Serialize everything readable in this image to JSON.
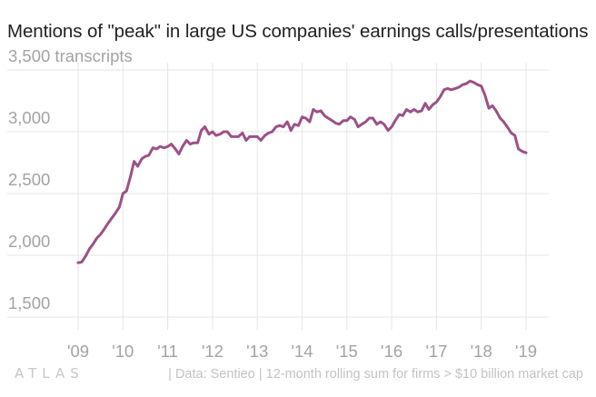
{
  "title": "Mentions of \"peak\" in large US companies' earnings calls/presentations",
  "footer": {
    "logo_text": "ATLAS",
    "source_text": "| Data: Sentieo | 12-month rolling sum for firms > $10 billion market cap"
  },
  "colors": {
    "line": "#9c5187",
    "grid": "#e6e6e6",
    "tick_label": "#a3a3a3",
    "title": "#222222"
  },
  "chart_data": {
    "type": "line",
    "title": "Mentions of \"peak\" in large US companies' earnings calls/presentations",
    "xlabel": "",
    "ylabel": "",
    "y_unit_label": "transcripts",
    "xlim": [
      2008.8,
      2019.5
    ],
    "ylim": [
      1300,
      3600
    ],
    "y_ticks": [
      1500,
      2000,
      2500,
      3000,
      3500
    ],
    "y_tick_labels": [
      "1,500",
      "2,000",
      "2,500",
      "3,000",
      "3,500 transcripts"
    ],
    "x_ticks": [
      2009,
      2010,
      2011,
      2012,
      2013,
      2014,
      2015,
      2016,
      2017,
      2018,
      2019
    ],
    "x_tick_labels": [
      "'09",
      "'10",
      "'11",
      "'12",
      "'13",
      "'14",
      "'15",
      "'16",
      "'17",
      "'18",
      "'19"
    ],
    "grid": true,
    "series": [
      {
        "name": "",
        "x": [
          2009.0,
          2009.08,
          2009.17,
          2009.25,
          2009.33,
          2009.42,
          2009.5,
          2009.58,
          2009.67,
          2009.75,
          2009.83,
          2009.92,
          2010.0,
          2010.08,
          2010.17,
          2010.25,
          2010.33,
          2010.42,
          2010.5,
          2010.58,
          2010.67,
          2010.75,
          2010.83,
          2010.92,
          2011.0,
          2011.08,
          2011.17,
          2011.25,
          2011.33,
          2011.42,
          2011.5,
          2011.58,
          2011.67,
          2011.75,
          2011.83,
          2011.92,
          2012.0,
          2012.08,
          2012.17,
          2012.25,
          2012.33,
          2012.42,
          2012.5,
          2012.58,
          2012.67,
          2012.75,
          2012.83,
          2012.92,
          2013.0,
          2013.08,
          2013.17,
          2013.25,
          2013.33,
          2013.42,
          2013.5,
          2013.58,
          2013.67,
          2013.75,
          2013.83,
          2013.92,
          2014.0,
          2014.08,
          2014.17,
          2014.25,
          2014.33,
          2014.42,
          2014.5,
          2014.58,
          2014.67,
          2014.75,
          2014.83,
          2014.92,
          2015.0,
          2015.08,
          2015.17,
          2015.25,
          2015.33,
          2015.42,
          2015.5,
          2015.58,
          2015.67,
          2015.75,
          2015.83,
          2015.92,
          2016.0,
          2016.08,
          2016.17,
          2016.25,
          2016.33,
          2016.42,
          2016.5,
          2016.58,
          2016.67,
          2016.75,
          2016.83,
          2016.92,
          2017.0,
          2017.08,
          2017.17,
          2017.25,
          2017.33,
          2017.42,
          2017.5,
          2017.58,
          2017.67,
          2017.75,
          2017.83,
          2017.92,
          2018.0,
          2018.08,
          2018.17,
          2018.25,
          2018.33,
          2018.42,
          2018.5,
          2018.58,
          2018.67,
          2018.75,
          2018.83,
          2018.92,
          2019.0
        ],
        "values": [
          1940,
          1945,
          1995,
          2050,
          2090,
          2140,
          2170,
          2210,
          2260,
          2300,
          2340,
          2390,
          2500,
          2520,
          2640,
          2760,
          2720,
          2780,
          2800,
          2810,
          2870,
          2860,
          2880,
          2870,
          2880,
          2900,
          2860,
          2820,
          2880,
          2930,
          2900,
          2910,
          2910,
          3010,
          3040,
          2980,
          3000,
          2970,
          2980,
          3000,
          3000,
          2960,
          2960,
          2960,
          2990,
          2930,
          2960,
          2960,
          2960,
          2930,
          2970,
          2990,
          3000,
          3040,
          3050,
          3040,
          3080,
          3010,
          3060,
          3050,
          3120,
          3110,
          3080,
          3180,
          3160,
          3170,
          3130,
          3110,
          3090,
          3070,
          3060,
          3090,
          3090,
          3120,
          3100,
          3040,
          3060,
          3080,
          3110,
          3110,
          3060,
          3080,
          3060,
          3010,
          3040,
          3090,
          3140,
          3130,
          3180,
          3160,
          3180,
          3160,
          3170,
          3230,
          3180,
          3220,
          3240,
          3280,
          3340,
          3350,
          3340,
          3350,
          3360,
          3380,
          3390,
          3410,
          3400,
          3380,
          3370,
          3300,
          3190,
          3210,
          3170,
          3110,
          3080,
          3040,
          2990,
          2970,
          2860,
          2840,
          2830
        ]
      }
    ]
  }
}
